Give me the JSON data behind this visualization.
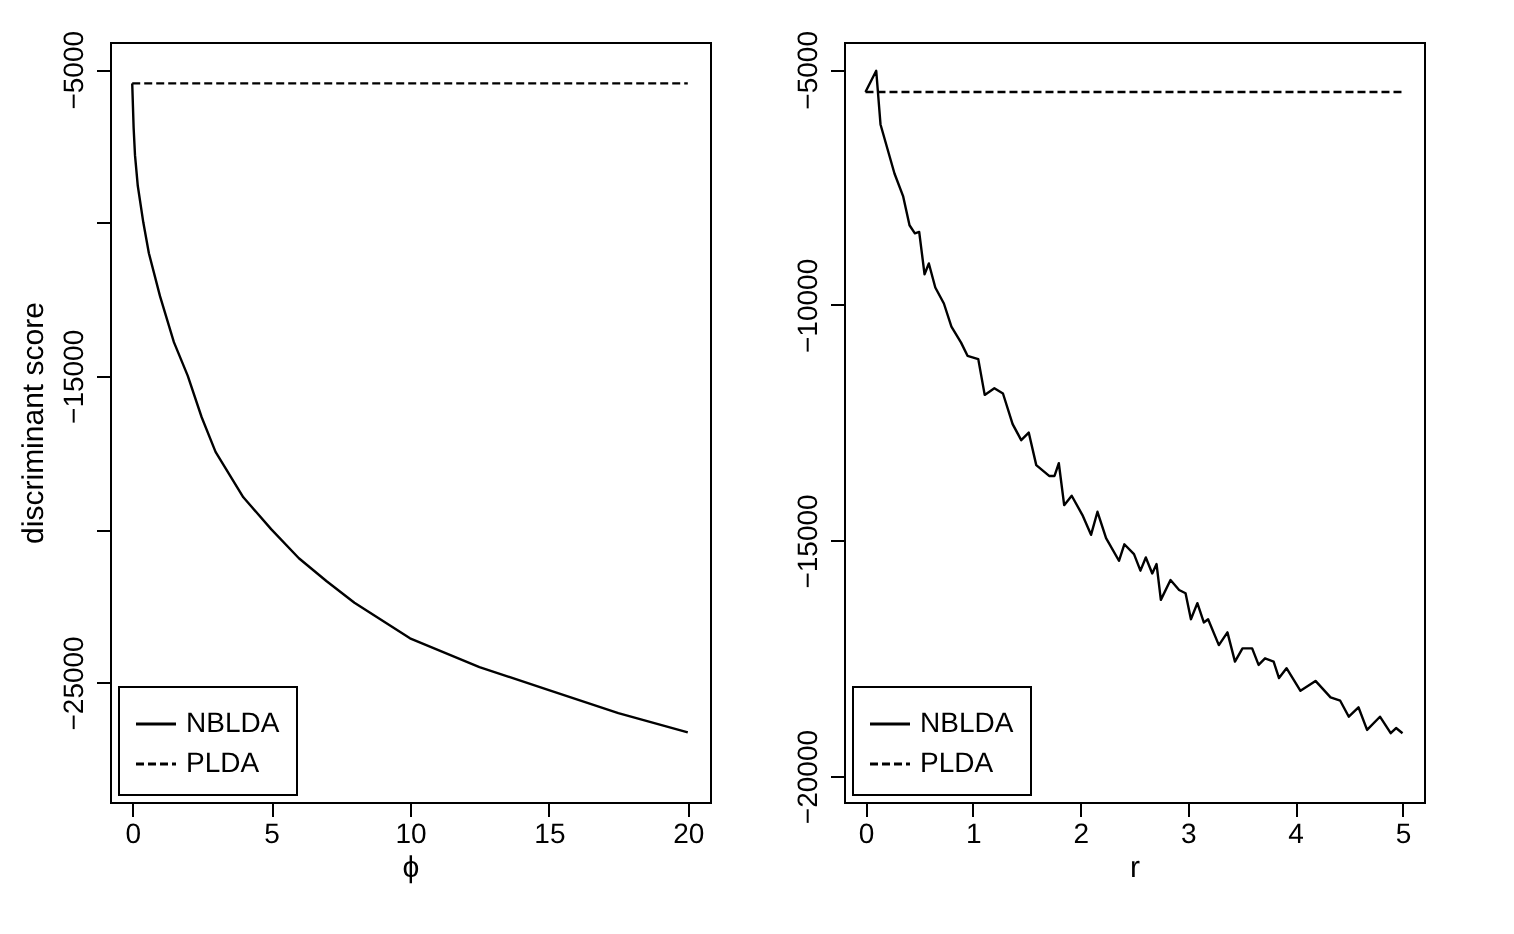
{
  "chart_data": [
    {
      "type": "line",
      "xlabel": "ϕ",
      "ylabel": "discriminant score",
      "xlim": [
        -0.8,
        20.8
      ],
      "ylim": [
        -28900,
        -4110
      ],
      "xticks": [
        0,
        5,
        10,
        15,
        20
      ],
      "yticks": [
        -5000,
        {
          "value": -10000,
          "label": null
        },
        -15000,
        {
          "value": -20000,
          "label": null
        },
        -25000
      ],
      "legend": "bottom left",
      "series": [
        {
          "name": "NBLDA",
          "color": "#000000",
          "line_style": "solid",
          "x": [
            0,
            0.05,
            0.1,
            0.2,
            0.4,
            0.6,
            1,
            1.5,
            2,
            2.5,
            3,
            4,
            5,
            6,
            7,
            8,
            10,
            12.5,
            15,
            17.5,
            20
          ],
          "values": [
            -5460,
            -6900,
            -7800,
            -8800,
            -10000,
            -11000,
            -12400,
            -13900,
            -15000,
            -16350,
            -17480,
            -18960,
            -20000,
            -20950,
            -21700,
            -22400,
            -23560,
            -24500,
            -25250,
            -26000,
            -26630
          ]
        },
        {
          "name": "PLDA",
          "color": "#000000",
          "line_style": "dashed",
          "x": [
            0,
            20
          ],
          "values": [
            -5460,
            -5460
          ]
        }
      ]
    },
    {
      "type": "line",
      "xlabel": "r",
      "xlim": [
        -0.2,
        5.2
      ],
      "ylim": [
        -20550,
        -4420
      ],
      "xticks": [
        0,
        1,
        2,
        3,
        4,
        5
      ],
      "yticks": [
        -5000,
        -10000,
        -15000,
        -20000
      ],
      "legend": "bottom left",
      "series": [
        {
          "name": "NBLDA",
          "color": "#000000",
          "line_style": "solid",
          "x": [
            0,
            0.1,
            0.14,
            0.27,
            0.35,
            0.41,
            0.46,
            0.5,
            0.55,
            0.59,
            0.65,
            0.73,
            0.8,
            0.89,
            0.95,
            1.05,
            1.11,
            1.2,
            1.28,
            1.37,
            1.45,
            1.52,
            1.59,
            1.71,
            1.76,
            1.8,
            1.85,
            1.92,
            2.02,
            2.1,
            2.16,
            2.24,
            2.36,
            2.41,
            2.5,
            2.56,
            2.61,
            2.67,
            2.71,
            2.75,
            2.84,
            2.92,
            2.98,
            3.03,
            3.09,
            3.15,
            3.19,
            3.29,
            3.37,
            3.44,
            3.51,
            3.6,
            3.66,
            3.72,
            3.8,
            3.85,
            3.92,
            4.05,
            4.19,
            4.33,
            4.42,
            4.5,
            4.59,
            4.67,
            4.79,
            4.89,
            4.94,
            5
          ],
          "values": [
            -5480,
            -5030,
            -6170,
            -7210,
            -7690,
            -8310,
            -8480,
            -8450,
            -9350,
            -9120,
            -9630,
            -9970,
            -10460,
            -10800,
            -11080,
            -11150,
            -11910,
            -11770,
            -11880,
            -12530,
            -12870,
            -12710,
            -13400,
            -13630,
            -13630,
            -13360,
            -14250,
            -14050,
            -14460,
            -14880,
            -14390,
            -14950,
            -15430,
            -15080,
            -15290,
            -15640,
            -15360,
            -15700,
            -15500,
            -16260,
            -15840,
            -16050,
            -16120,
            -16670,
            -16330,
            -16740,
            -16670,
            -17220,
            -16950,
            -17570,
            -17290,
            -17290,
            -17640,
            -17500,
            -17570,
            -17920,
            -17710,
            -18190,
            -17980,
            -18330,
            -18400,
            -18740,
            -18540,
            -19020,
            -18740,
            -19090,
            -18980,
            -19090
          ]
        },
        {
          "name": "PLDA",
          "color": "#000000",
          "line_style": "dashed",
          "x": [
            0,
            5
          ],
          "values": [
            -5480,
            -5480
          ]
        }
      ]
    }
  ]
}
